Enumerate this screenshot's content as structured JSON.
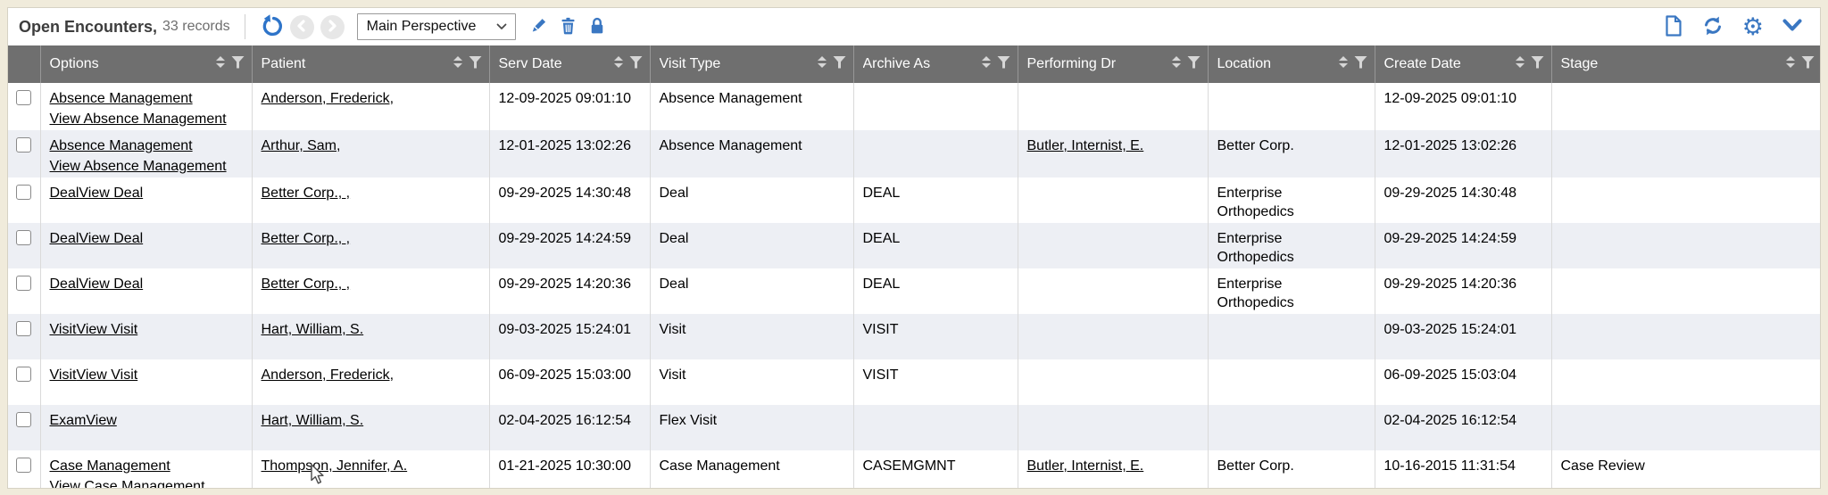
{
  "toolbar": {
    "title": "Open Encounters,",
    "record_count": "33 records",
    "perspective_select": {
      "value": "Main Perspective"
    },
    "icons": {
      "undo": "undo-icon",
      "nav_back": "nav-back-icon",
      "nav_forward": "nav-forward-icon",
      "edit": "pencil-icon",
      "delete": "trash-icon",
      "lock": "lock-icon",
      "new_document": "new-document-icon",
      "refresh": "refresh-icon",
      "settings": "gear-icon",
      "collapse": "chevron-down-icon"
    }
  },
  "table": {
    "columns": [
      {
        "key": "options",
        "label": "Options"
      },
      {
        "key": "patient",
        "label": "Patient"
      },
      {
        "key": "serv_date",
        "label": "Serv Date"
      },
      {
        "key": "visit_type",
        "label": "Visit Type"
      },
      {
        "key": "archive_as",
        "label": "Archive As"
      },
      {
        "key": "performing_dr",
        "label": "Performing Dr"
      },
      {
        "key": "location",
        "label": "Location"
      },
      {
        "key": "create_date",
        "label": "Create Date"
      },
      {
        "key": "stage",
        "label": "Stage"
      }
    ],
    "rows": [
      {
        "options": [
          "Absence Management",
          "View Absence Management"
        ],
        "patient": "Anderson, Frederick,",
        "serv_date": "12-09-2025 09:01:10",
        "visit_type": "Absence Management",
        "archive_as": "",
        "performing_dr": "",
        "location": "",
        "create_date": "12-09-2025 09:01:10",
        "stage": ""
      },
      {
        "options": [
          "Absence Management",
          "View Absence Management"
        ],
        "patient": "Arthur, Sam,",
        "serv_date": "12-01-2025 13:02:26",
        "visit_type": "Absence Management",
        "archive_as": "",
        "performing_dr": "Butler, Internist, E.",
        "location": "Better Corp.",
        "create_date": "12-01-2025 13:02:26",
        "stage": ""
      },
      {
        "options": [
          "Deal",
          "View Deal"
        ],
        "patient": "Better Corp., ,",
        "serv_date": "09-29-2025 14:30:48",
        "visit_type": "Deal",
        "archive_as": "DEAL",
        "performing_dr": "",
        "location": "Enterprise Orthopedics",
        "create_date": "09-29-2025 14:30:48",
        "stage": ""
      },
      {
        "options": [
          "Deal",
          "View Deal"
        ],
        "patient": "Better Corp., ,",
        "serv_date": "09-29-2025 14:24:59",
        "visit_type": "Deal",
        "archive_as": "DEAL",
        "performing_dr": "",
        "location": "Enterprise Orthopedics",
        "create_date": "09-29-2025 14:24:59",
        "stage": ""
      },
      {
        "options": [
          "Deal",
          "View Deal"
        ],
        "patient": "Better Corp., ,",
        "serv_date": "09-29-2025 14:20:36",
        "visit_type": "Deal",
        "archive_as": "DEAL",
        "performing_dr": "",
        "location": "Enterprise Orthopedics",
        "create_date": "09-29-2025 14:20:36",
        "stage": ""
      },
      {
        "options": [
          "Visit",
          "View Visit"
        ],
        "patient": "Hart, William, S.",
        "serv_date": "09-03-2025 15:24:01",
        "visit_type": "Visit",
        "archive_as": "VISIT",
        "performing_dr": "",
        "location": "",
        "create_date": "09-03-2025 15:24:01",
        "stage": ""
      },
      {
        "options": [
          "Visit",
          "View Visit"
        ],
        "patient": "Anderson, Frederick,",
        "serv_date": "06-09-2025 15:03:00",
        "visit_type": "Visit",
        "archive_as": "VISIT",
        "performing_dr": "",
        "location": "",
        "create_date": "06-09-2025 15:03:04",
        "stage": ""
      },
      {
        "options": [
          "Exam",
          "View"
        ],
        "patient": "Hart, William, S.",
        "serv_date": "02-04-2025 16:12:54",
        "visit_type": "Flex Visit",
        "archive_as": "",
        "performing_dr": "",
        "location": "",
        "create_date": "02-04-2025 16:12:54",
        "stage": ""
      },
      {
        "options": [
          "Case Management",
          "View Case Management"
        ],
        "patient": "Thompson, Jennifer, A.",
        "serv_date": "01-21-2025 10:30:00",
        "visit_type": "Case Management",
        "archive_as": "CASEMGMNT",
        "performing_dr": "Butler, Internist, E.",
        "location": "Better Corp.",
        "create_date": "10-16-2015 11:31:54",
        "stage": "Case Review"
      }
    ]
  },
  "colors": {
    "accent_blue": "#3a77c2",
    "header_bg": "#6f6f6f",
    "alt_row_bg": "#edeff4",
    "page_bg": "#f0ebdb",
    "header_icon": "#d6d6d6"
  }
}
